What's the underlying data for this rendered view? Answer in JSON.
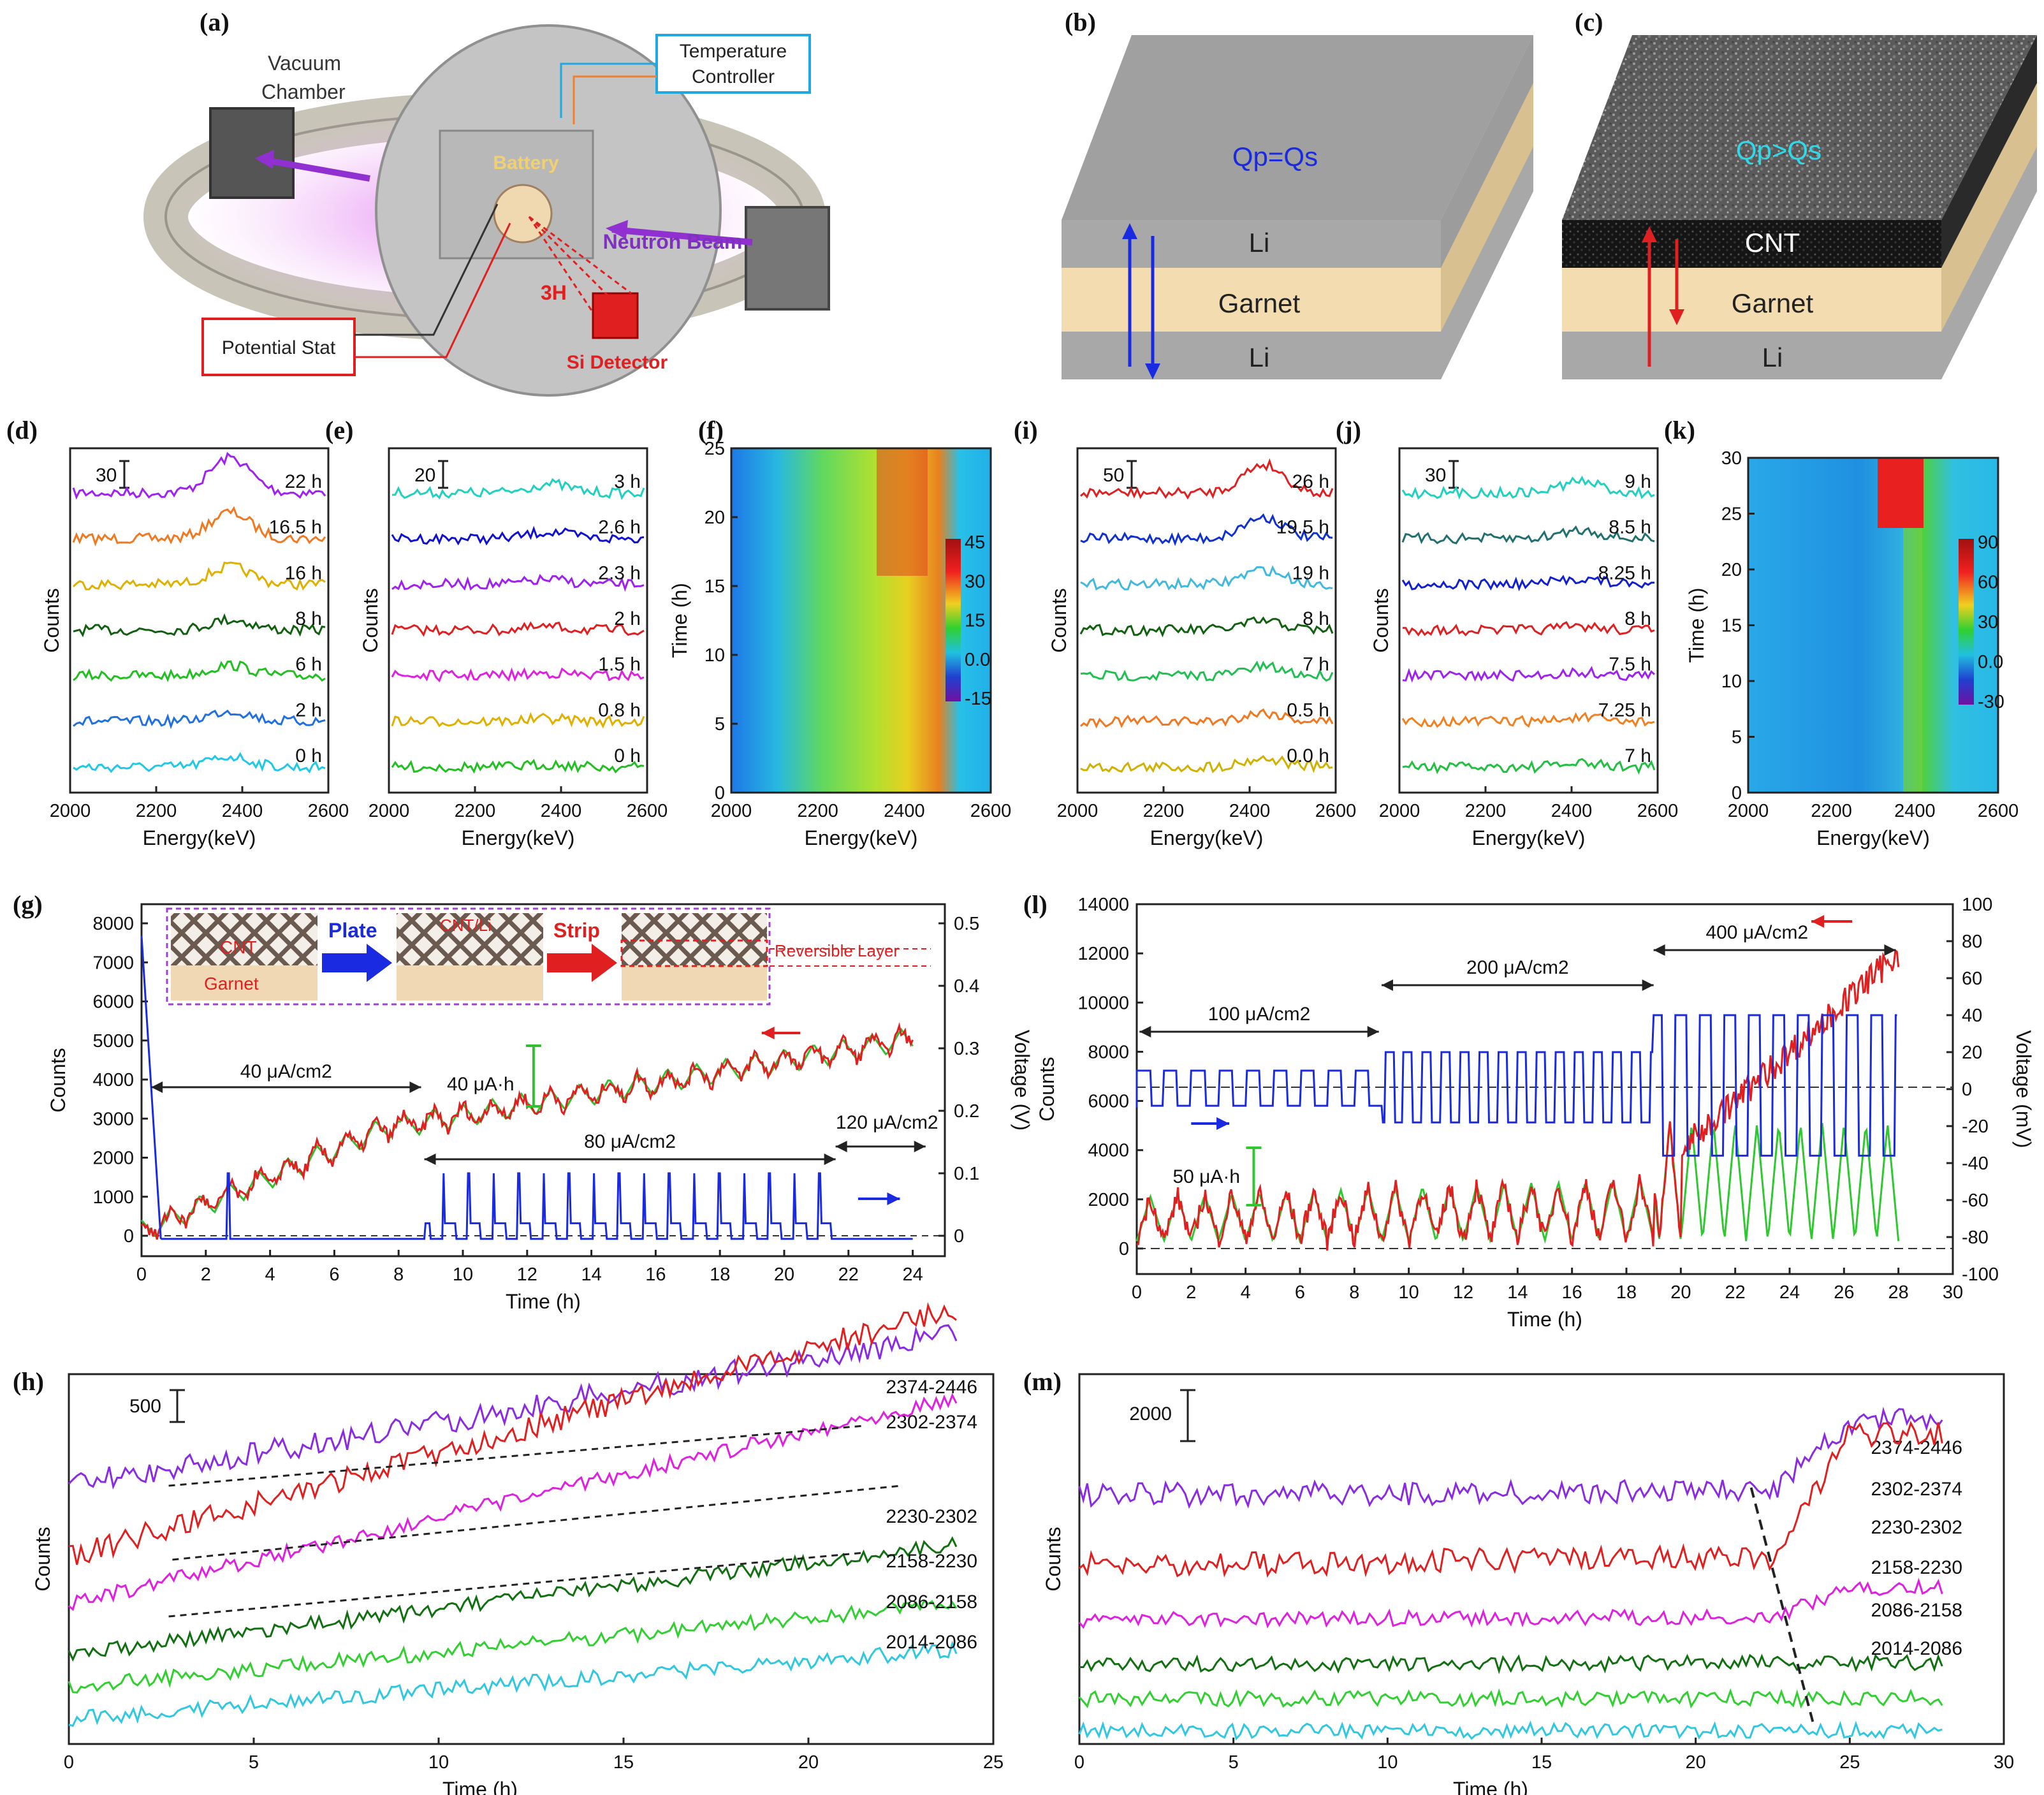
{
  "panels": {
    "a": {
      "label": "(a)",
      "vacuum": "Vacuum",
      "chamber": "Chamber",
      "temp1": "Temperature",
      "temp2": "Controller",
      "battery": "Battery",
      "beam": "Neutron Beam",
      "tritium": "3H",
      "detector": "Si Detector",
      "potstat": "Potential Stat"
    },
    "b": {
      "label": "(b)",
      "eq": "Qp=Qs",
      "top": "Li",
      "mid": "Garnet",
      "bot": "Li"
    },
    "c": {
      "label": "(c)",
      "eq": "Qp>Qs",
      "top": "CNT",
      "mid": "Garnet",
      "bot": "Li"
    },
    "d": {
      "label": "(d)",
      "scale": "30",
      "curves": [
        "22 h",
        "16.5 h",
        "16 h",
        "8 h",
        "6 h",
        "2 h",
        "0 h"
      ],
      "colors": [
        "#a020f0",
        "#f07820",
        "#e0b000",
        "#106010",
        "#20c020",
        "#2070e0",
        "#20c8e8"
      ]
    },
    "e": {
      "label": "(e)",
      "scale": "20",
      "curves": [
        "3 h",
        "2.6 h",
        "2.3 h",
        "2 h",
        "1.5 h",
        "0.8 h",
        "0 h"
      ],
      "colors": [
        "#20d0c0",
        "#1010d0",
        "#a020f0",
        "#e02020",
        "#e020e0",
        "#e0b000",
        "#20c020"
      ]
    },
    "f": {
      "label": "(f)",
      "ylabel": "Time (h)",
      "yticks": [
        "0",
        "5",
        "10",
        "15",
        "20",
        "25"
      ],
      "cbar": [
        "45",
        "30",
        "15",
        "0.0",
        "-15"
      ]
    },
    "i": {
      "label": "(i)",
      "scale": "50",
      "curves": [
        "26 h",
        "19.5 h",
        "19 h",
        "8 h",
        "7 h",
        "0.5 h",
        "0.0 h"
      ],
      "colors": [
        "#e02020",
        "#1030d0",
        "#40b8e0",
        "#106010",
        "#20c050",
        "#f07820",
        "#d0b000"
      ]
    },
    "j": {
      "label": "(j)",
      "scale": "30",
      "curves": [
        "9 h",
        "8.5 h",
        "8.25 h",
        "8 h",
        "7.5 h",
        "7.25 h",
        "7 h"
      ],
      "colors": [
        "#20d0c0",
        "#207070",
        "#1020d0",
        "#e02020",
        "#a020f0",
        "#f08020",
        "#20c040"
      ]
    },
    "k": {
      "label": "(k)",
      "ylabel": "Time (h)",
      "yticks": [
        "0",
        "5",
        "10",
        "15",
        "20",
        "25",
        "30"
      ],
      "cbar": [
        "90",
        "60",
        "30",
        "0.0",
        "-30"
      ]
    },
    "g": {
      "label": "(g)",
      "ylabel": "Counts",
      "y2label": "Voltage (V)",
      "xlabel": "Time (h)",
      "yticks": [
        "0",
        "1000",
        "2000",
        "3000",
        "4000",
        "5000",
        "6000",
        "7000",
        "8000"
      ],
      "y2ticks": [
        "0",
        "0.1",
        "0.2",
        "0.3",
        "0.4",
        "0.5"
      ],
      "xticks": [
        "0",
        "2",
        "4",
        "6",
        "8",
        "10",
        "12",
        "14",
        "16",
        "18",
        "20",
        "22",
        "24"
      ],
      "cur1": "40 μA/cm2",
      "cur2": "80 μA/cm2",
      "cur3": "120 μA/cm2",
      "cap": "40 μA·h",
      "inset_cnt": "CNT",
      "inset_garnet": "Garnet",
      "inset_plate": "Plate",
      "inset_cntli": "CNT/Li",
      "inset_strip": "Strip",
      "inset_rev": "Reversible Layer"
    },
    "l": {
      "label": "(l)",
      "ylabel": "Counts",
      "y2label": "Voltage (mV)",
      "xlabel": "Time (h)",
      "yticks": [
        "0",
        "2000",
        "4000",
        "6000",
        "8000",
        "10000",
        "12000",
        "14000"
      ],
      "y2ticks": [
        "-100",
        "-80",
        "-60",
        "-40",
        "-20",
        "0",
        "20",
        "40",
        "60",
        "80",
        "100"
      ],
      "xticks": [
        "0",
        "2",
        "4",
        "6",
        "8",
        "10",
        "12",
        "14",
        "16",
        "18",
        "20",
        "22",
        "24",
        "26",
        "28",
        "30"
      ],
      "cur1": "100 μA/cm2",
      "cur2": "200 μA/cm2",
      "cur3": "400 μA/cm2",
      "cap": "50 μA·h"
    },
    "h": {
      "label": "(h)",
      "ylabel": "Counts",
      "xlabel": "Time (h)",
      "scale": "500",
      "xticks": [
        "0",
        "5",
        "10",
        "15",
        "20",
        "25"
      ],
      "bands": [
        "2374-2446",
        "2302-2374",
        "2230-2302",
        "2158-2230",
        "2086-2158",
        "2014-2086"
      ],
      "colors": [
        "#8a2be2",
        "#e02020",
        "#e020e0",
        "#107010",
        "#30d030",
        "#30c8e0"
      ]
    },
    "m": {
      "label": "(m)",
      "ylabel": "Counts",
      "xlabel": "Time (h)",
      "scale": "2000",
      "xticks": [
        "0",
        "5",
        "10",
        "15",
        "20",
        "25",
        "30"
      ],
      "bands": [
        "2374-2446",
        "2302-2374",
        "2230-2302",
        "2158-2230",
        "2086-2158",
        "2014-2086"
      ],
      "colors": [
        "#8a2be2",
        "#e02020",
        "#e020e0",
        "#107010",
        "#30d030",
        "#30c8e0"
      ]
    }
  },
  "common": {
    "counts": "Counts",
    "energy": "Energy(keV)",
    "eticks": [
      "2000",
      "2200",
      "2400",
      "2600"
    ]
  }
}
